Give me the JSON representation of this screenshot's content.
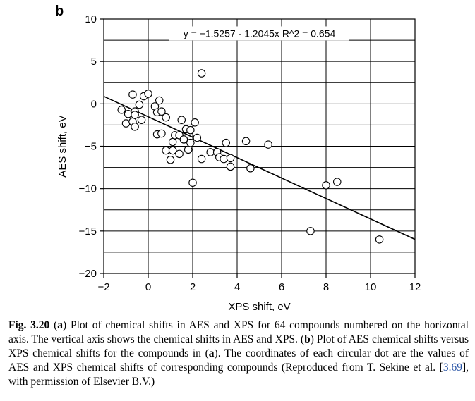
{
  "panel_letter": "b",
  "caption": {
    "fig_label": "Fig. 3.20",
    "p1": " (",
    "a1": "a",
    "p2": ") Plot of chemical shifts in AES and XPS for 64 compounds numbered on the horizontal axis. The vertical axis shows the chemical shifts in AES and XPS. (",
    "b1": "b",
    "p3": ") Plot of AES chemical shifts versus XPS chemical shifts for the compounds in (",
    "a2": "a",
    "p4": "). The coordinates of each circular dot are the values of AES and XPS chemical shifts of corresponding compounds (Reproduced from T. Sekine et al. [",
    "ref": "3.69",
    "p5": "], with permission of Elsevier B.V.)"
  },
  "chart_data": {
    "type": "scatter",
    "title": "",
    "xlabel": "XPS shift, eV",
    "ylabel": "AES shift, eV",
    "xlim": [
      -2,
      12
    ],
    "ylim": [
      -20,
      10
    ],
    "xticks": [
      -2,
      0,
      2,
      4,
      6,
      8,
      10,
      12
    ],
    "xtick_labels": [
      "−2",
      "0",
      "2",
      "4",
      "6",
      "8",
      "10",
      "12"
    ],
    "yticks": [
      -20,
      -15,
      -10,
      -5,
      0,
      5,
      10
    ],
    "ytick_labels": [
      "−20",
      "−15",
      "−10",
      "−5",
      "0",
      "5",
      "10"
    ],
    "grid": true,
    "annotation": "y = −1.5257 - 1.2045x  R^2 = 0.654",
    "regression": {
      "intercept": -1.5257,
      "slope": -1.2045
    },
    "marker": "open-circle",
    "points": [
      [
        -1.2,
        -0.7
      ],
      [
        -1.0,
        -2.3
      ],
      [
        -0.9,
        -1.2
      ],
      [
        -0.7,
        1.1
      ],
      [
        -0.7,
        -2.1
      ],
      [
        -0.6,
        -2.7
      ],
      [
        -0.6,
        -0.9
      ],
      [
        -0.6,
        -1.3
      ],
      [
        -0.4,
        -0.1
      ],
      [
        -0.3,
        -1.9
      ],
      [
        -0.2,
        0.9
      ],
      [
        0.0,
        1.2
      ],
      [
        0.3,
        -0.3
      ],
      [
        0.4,
        -1.0
      ],
      [
        0.4,
        -3.6
      ],
      [
        0.5,
        0.4
      ],
      [
        0.6,
        -3.5
      ],
      [
        0.6,
        -0.9
      ],
      [
        0.8,
        -1.6
      ],
      [
        0.8,
        -5.5
      ],
      [
        1.0,
        -6.6
      ],
      [
        1.1,
        -5.5
      ],
      [
        1.1,
        -4.5
      ],
      [
        1.2,
        -3.7
      ],
      [
        1.4,
        -5.9
      ],
      [
        1.4,
        -3.7
      ],
      [
        1.5,
        -1.9
      ],
      [
        1.6,
        -4.2
      ],
      [
        1.7,
        -3.0
      ],
      [
        1.8,
        -5.4
      ],
      [
        1.9,
        -3.1
      ],
      [
        1.9,
        -4.6
      ],
      [
        2.0,
        -9.3
      ],
      [
        2.1,
        -2.2
      ],
      [
        2.2,
        -4.0
      ],
      [
        2.4,
        -6.5
      ],
      [
        2.4,
        3.6
      ],
      [
        2.8,
        -5.7
      ],
      [
        3.1,
        -5.7
      ],
      [
        3.2,
        -6.3
      ],
      [
        3.4,
        -6.5
      ],
      [
        3.5,
        -4.6
      ],
      [
        3.7,
        -6.4
      ],
      [
        3.7,
        -7.4
      ],
      [
        4.4,
        -4.4
      ],
      [
        4.6,
        -7.6
      ],
      [
        5.4,
        -4.8
      ],
      [
        7.3,
        -15.0
      ],
      [
        8.0,
        -9.6
      ],
      [
        8.5,
        -9.2
      ],
      [
        10.4,
        -16.0
      ]
    ]
  },
  "colors": {
    "ink": "#000000",
    "background": "#ffffff",
    "reference_link": "#2a55a6"
  }
}
